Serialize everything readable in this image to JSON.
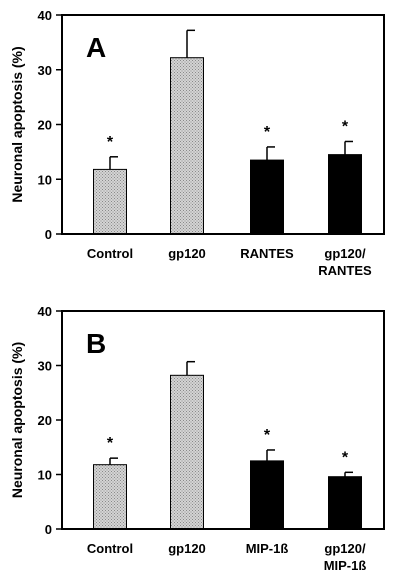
{
  "chart_data": [
    {
      "type": "bar",
      "panel_label": "A",
      "ylabel": "Neuronal apoptosis (%)",
      "ylim": [
        0,
        40
      ],
      "yticks": [
        0,
        10,
        20,
        30,
        40
      ],
      "categories": [
        [
          "Control"
        ],
        [
          "gp120"
        ],
        [
          "RANTES"
        ],
        [
          "gp120/",
          "RANTES"
        ]
      ],
      "values": [
        11.8,
        32.2,
        13.5,
        14.5
      ],
      "errors": [
        2.3,
        5.0,
        2.4,
        2.4
      ],
      "significance": [
        "*",
        "",
        "*",
        "*"
      ],
      "bar_colors": [
        "#c8c8c8",
        "#c8c8c8",
        "#000000",
        "#000000"
      ],
      "grid": false
    },
    {
      "type": "bar",
      "panel_label": "B",
      "ylabel": "Neuronal apoptosis (%)",
      "ylim": [
        0,
        40
      ],
      "yticks": [
        0,
        10,
        20,
        30,
        40
      ],
      "categories": [
        [
          "Control"
        ],
        [
          "gp120"
        ],
        [
          "MIP-1ß"
        ],
        [
          "gp120/",
          "MIP-1ß"
        ]
      ],
      "values": [
        11.8,
        28.2,
        12.5,
        9.6
      ],
      "errors": [
        1.2,
        2.5,
        2.0,
        0.8
      ],
      "significance": [
        "*",
        "",
        "*",
        "*"
      ],
      "bar_colors": [
        "#c8c8c8",
        "#c8c8c8",
        "#000000",
        "#000000"
      ],
      "grid": false
    }
  ]
}
